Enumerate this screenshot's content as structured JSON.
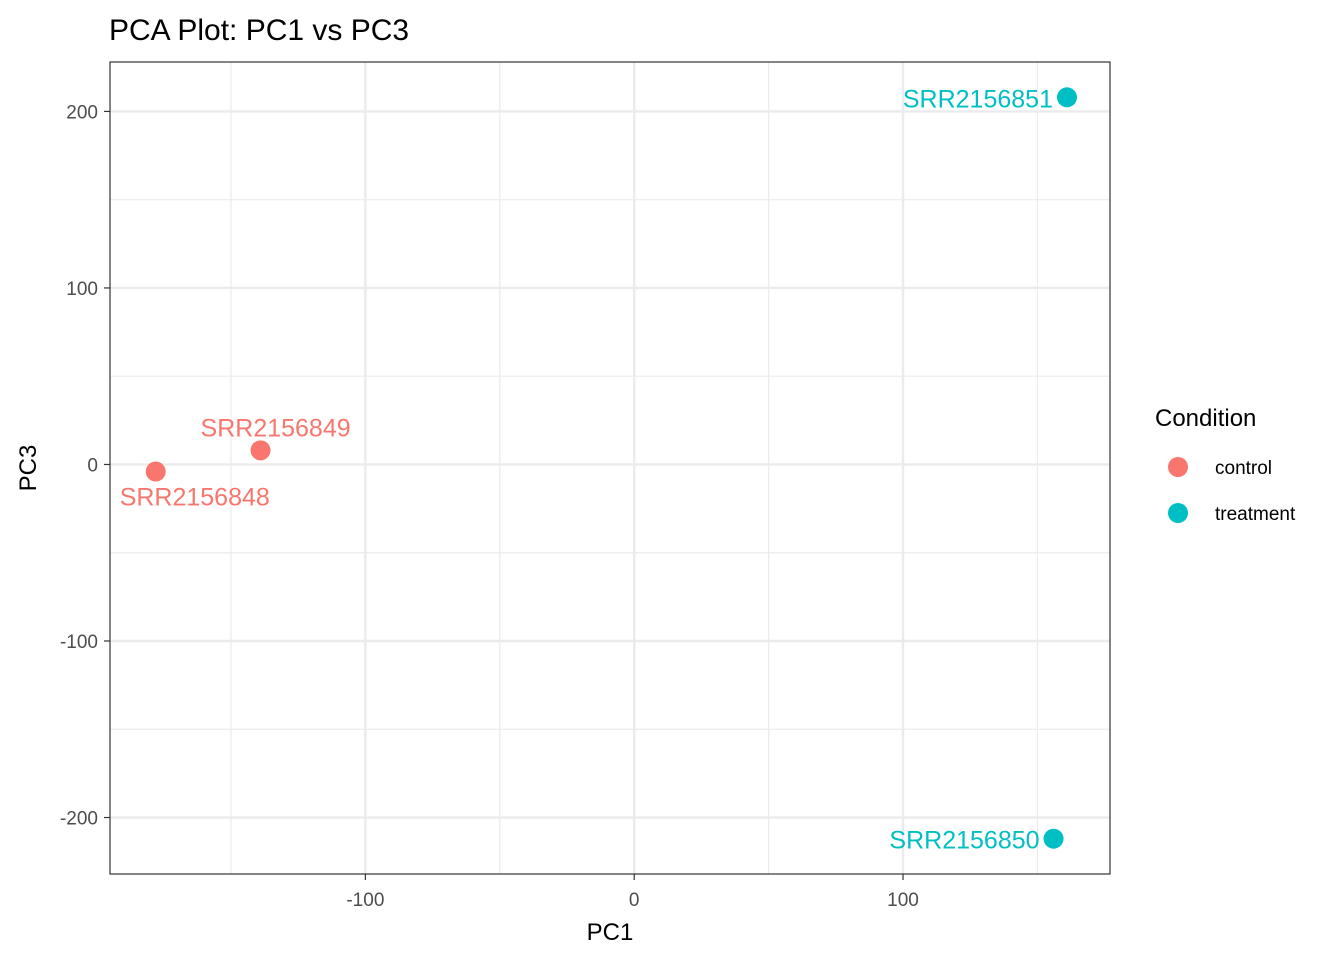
{
  "chart_data": {
    "type": "scatter",
    "title": "PCA Plot: PC1 vs PC3",
    "xlabel": "PC1",
    "ylabel": "PC3",
    "xlim": [
      -195,
      177
    ],
    "ylim": [
      -232,
      228
    ],
    "x_ticks": [
      -100,
      0,
      100
    ],
    "y_ticks": [
      -200,
      -100,
      0,
      100,
      200
    ],
    "x_tick_labels": [
      "-100",
      "0",
      "100"
    ],
    "y_tick_labels": [
      "-200",
      "-100",
      "0",
      "100",
      "200"
    ],
    "grid": true,
    "legend": {
      "title": "Condition",
      "position": "right",
      "entries": [
        {
          "label": "control",
          "color": "#F8766D"
        },
        {
          "label": "treatment",
          "color": "#00BFC4"
        }
      ]
    },
    "series": [
      {
        "name": "control",
        "color": "#F8766D",
        "points": [
          {
            "x": -178,
            "y": -4,
            "label": "SRR2156848"
          },
          {
            "x": -139,
            "y": 8,
            "label": "SRR2156849"
          }
        ]
      },
      {
        "name": "treatment",
        "color": "#00BFC4",
        "points": [
          {
            "x": 156,
            "y": -212,
            "label": "SRR2156850"
          },
          {
            "x": 161,
            "y": 208,
            "label": "SRR2156851"
          }
        ]
      }
    ]
  }
}
